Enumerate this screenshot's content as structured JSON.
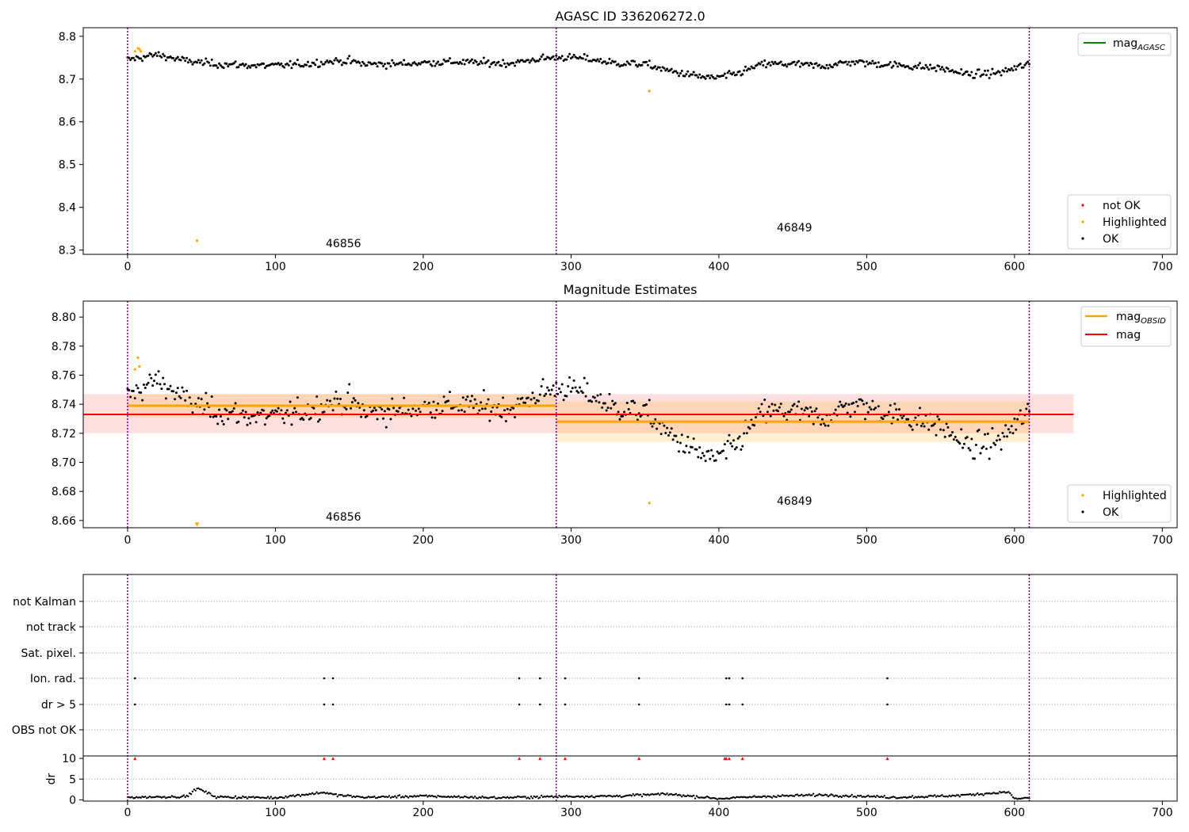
{
  "colors": {
    "ok": "#000000",
    "highlighted": "#ffa500",
    "not_ok": "#ff0000",
    "mag_agasc": "#008000",
    "obs_boundary": "#800080",
    "band_red": "#ff0000",
    "band_orange": "#ffa500",
    "grid": "#b0b0b0"
  },
  "chart_data": [
    {
      "type": "scatter",
      "title": "AGASC ID 336206272.0",
      "xlim": [
        -30,
        710
      ],
      "ylim": [
        8.29,
        8.82
      ],
      "xticks": [
        0,
        100,
        200,
        300,
        400,
        500,
        600,
        700
      ],
      "yticks": [
        8.3,
        8.4,
        8.5,
        8.6,
        8.7,
        8.8
      ],
      "ytick_labels": [
        "8.3",
        "8.4",
        "8.5",
        "8.6",
        "8.7",
        "8.8"
      ],
      "obs_boundaries": [
        0,
        290,
        610
      ],
      "obs_labels": [
        {
          "text": "46856",
          "x": 145,
          "y": 8.295
        },
        {
          "text": "46849",
          "x": 450,
          "y": 8.335
        }
      ],
      "series": [
        {
          "name": "OK",
          "segments": [
            {
              "x0": 0,
              "x1": 290,
              "points": [
                [
                  0,
                  8.745
                ],
                [
                  20,
                  8.757
                ],
                [
                  40,
                  8.742
                ],
                [
                  60,
                  8.735
                ],
                [
                  80,
                  8.732
                ],
                [
                  100,
                  8.731
                ],
                [
                  120,
                  8.735
                ],
                [
                  140,
                  8.742
                ],
                [
                  150,
                  8.742
                ],
                [
                  160,
                  8.735
                ],
                [
                  180,
                  8.735
                ],
                [
                  200,
                  8.738
                ],
                [
                  220,
                  8.74
                ],
                [
                  240,
                  8.738
                ],
                [
                  260,
                  8.737
                ],
                [
                  280,
                  8.748
                ],
                [
                  290,
                  8.75
                ]
              ]
            },
            {
              "x0": 290,
              "x1": 610,
              "points": [
                [
                  290,
                  8.752
                ],
                [
                  310,
                  8.748
                ],
                [
                  330,
                  8.737
                ],
                [
                  350,
                  8.735
                ],
                [
                  365,
                  8.72
                ],
                [
                  380,
                  8.71
                ],
                [
                  395,
                  8.702
                ],
                [
                  410,
                  8.71
                ],
                [
                  430,
                  8.735
                ],
                [
                  450,
                  8.735
                ],
                [
                  470,
                  8.73
                ],
                [
                  490,
                  8.74
                ],
                [
                  510,
                  8.735
                ],
                [
                  530,
                  8.73
                ],
                [
                  550,
                  8.725
                ],
                [
                  570,
                  8.71
                ],
                [
                  590,
                  8.715
                ],
                [
                  610,
                  8.735
                ]
              ]
            }
          ]
        },
        {
          "name": "Highlighted",
          "points": [
            [
              5,
              8.765
            ],
            [
              7,
              8.772
            ],
            [
              8,
              8.77
            ],
            [
              9,
              8.765
            ],
            [
              47,
              8.322
            ],
            [
              353,
              8.672
            ]
          ]
        }
      ],
      "legend_top": [
        {
          "name": "mag_AGASC",
          "base": "mag",
          "sub": "AGASC",
          "style": "line",
          "color_key": "mag_agasc"
        }
      ],
      "legend_bottom": [
        {
          "name": "not OK",
          "color_key": "not_ok"
        },
        {
          "name": "Highlighted",
          "color_key": "highlighted"
        },
        {
          "name": "OK",
          "color_key": "ok"
        }
      ]
    },
    {
      "type": "scatter",
      "title": "Magnitude Estimates",
      "xlim": [
        -30,
        710
      ],
      "ylim": [
        8.655,
        8.811
      ],
      "xticks": [
        0,
        100,
        200,
        300,
        400,
        500,
        600,
        700
      ],
      "yticks": [
        8.66,
        8.68,
        8.7,
        8.72,
        8.74,
        8.76,
        8.78,
        8.8
      ],
      "ytick_labels": [
        "8.66",
        "8.68",
        "8.70",
        "8.72",
        "8.74",
        "8.76",
        "8.78",
        "8.80"
      ],
      "obs_boundaries": [
        0,
        290,
        610
      ],
      "obs_labels": [
        {
          "text": "46856",
          "x": 145,
          "y": 8.659
        },
        {
          "text": "46849",
          "x": 450,
          "y": 8.672
        }
      ],
      "mag": {
        "value": 8.733,
        "band": [
          8.72,
          8.747
        ],
        "x_range": [
          -30,
          640
        ]
      },
      "mag_obsid": [
        {
          "x0": 0,
          "x1": 290,
          "value": 8.739,
          "band": [
            8.731,
            8.747
          ]
        },
        {
          "x0": 290,
          "x1": 610,
          "value": 8.728,
          "band": [
            8.714,
            8.742
          ]
        }
      ],
      "series": [
        {
          "name": "OK",
          "same_as_panel": 0
        },
        {
          "name": "Highlighted",
          "points": [
            [
              5,
              8.764
            ],
            [
              7,
              8.772
            ],
            [
              8,
              8.766
            ],
            [
              353,
              8.672
            ]
          ]
        },
        {
          "name": "Highlighted (off-axis marker)",
          "points": [
            [
              47,
              8.657
            ]
          ]
        }
      ],
      "legend_top": [
        {
          "name": "mag_OBSID",
          "base": "mag",
          "sub": "OBSID",
          "style": "line",
          "color_key": "band_orange"
        },
        {
          "name": "mag",
          "base": "mag",
          "sub": "",
          "style": "line",
          "color_key": "band_red"
        }
      ],
      "legend_bottom": [
        {
          "name": "Highlighted",
          "color_key": "highlighted"
        },
        {
          "name": "OK",
          "color_key": "ok"
        }
      ]
    },
    {
      "type": "scatter",
      "title": "",
      "xlim": [
        -30,
        710
      ],
      "xticks": [
        0,
        100,
        200,
        300,
        400,
        500,
        600,
        700
      ],
      "obs_boundaries": [
        0,
        290,
        610
      ],
      "flag_rows": [
        "not Kalman",
        "not track",
        "Sat. pixel.",
        "Ion. rad.",
        "dr > 5",
        "OBS not OK"
      ],
      "flag_points": {
        "Ion. rad.": [
          5,
          133,
          139,
          265,
          279,
          296,
          346,
          405,
          407,
          416,
          514
        ],
        "dr > 5": [
          5,
          133,
          139,
          265,
          279,
          296,
          346,
          405,
          407,
          416,
          514
        ]
      },
      "dr": {
        "ylabel": "dr",
        "ylim": [
          -0.3,
          10.6
        ],
        "yticks": [
          0,
          5,
          10
        ],
        "ytick_labels": [
          "0",
          "5",
          "10"
        ],
        "capped_at_10": [
          5,
          133,
          139,
          265,
          279,
          296,
          346,
          404,
          405,
          407,
          416,
          514
        ],
        "profile": [
          [
            0,
            0.6
          ],
          [
            40,
            0.8
          ],
          [
            47,
            2.8
          ],
          [
            60,
            0.7
          ],
          [
            100,
            0.5
          ],
          [
            133,
            1.8
          ],
          [
            140,
            1.2
          ],
          [
            160,
            0.6
          ],
          [
            200,
            0.9
          ],
          [
            250,
            0.5
          ],
          [
            290,
            0.8
          ],
          [
            330,
            0.9
          ],
          [
            365,
            1.4
          ],
          [
            400,
            0.3
          ],
          [
            430,
            0.8
          ],
          [
            470,
            1.2
          ],
          [
            520,
            0.6
          ],
          [
            560,
            1.0
          ],
          [
            596,
            1.9
          ],
          [
            600,
            0.2
          ],
          [
            610,
            0.5
          ]
        ]
      }
    }
  ]
}
